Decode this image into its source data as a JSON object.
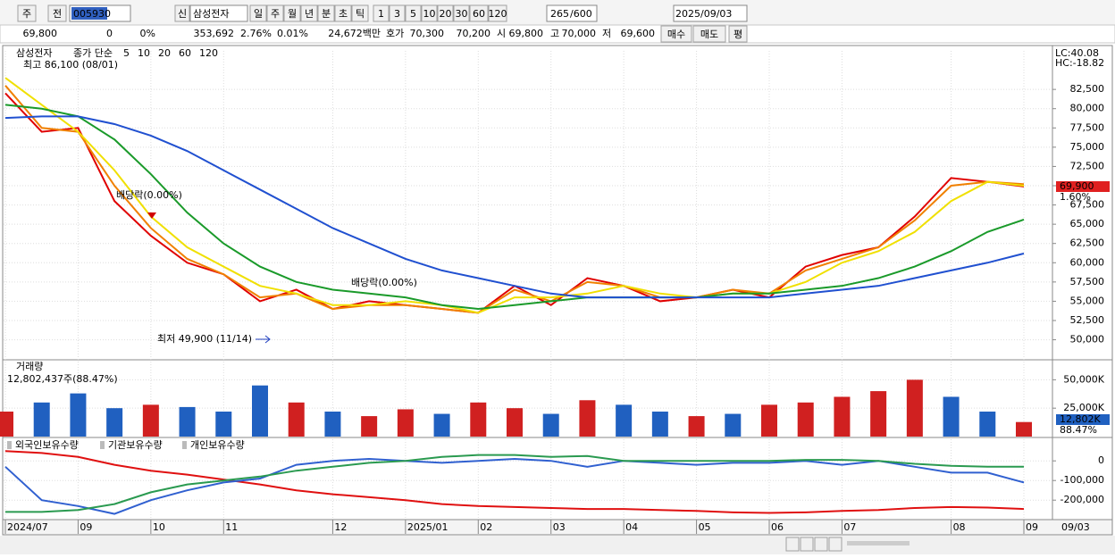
{
  "toolbar": {
    "period": "주",
    "prev": "전",
    "code": "005930",
    "name": "삼성전자",
    "new": "신",
    "intervals": [
      "일",
      "주",
      "월",
      "년",
      "분",
      "초",
      "틱"
    ],
    "counts": [
      "1",
      "3",
      "5",
      "10",
      "20",
      "30",
      "60",
      "120"
    ],
    "range": "265",
    "range_max": "/600",
    "date": "2025/09/03"
  },
  "quote": {
    "price": "69,800",
    "change": "0",
    "change_pct": "0%",
    "volume": "353,692",
    "turnover": "2.76%",
    "ratio": "0.01%",
    "amount": "24,672백만",
    "ask_label": "호가",
    "ask": "70,300",
    "bid": "70,200",
    "open_label": "시",
    "open": "69,800",
    "high_label": "고",
    "high": "70,000",
    "low_label": "저",
    "low": "69,600",
    "buy": "매수",
    "sell": "매도",
    "avg": "평"
  },
  "chart_data": [
    {
      "type": "line",
      "title": "삼성전자",
      "legend_title": "종가 단순",
      "lc": "LC:40.08",
      "hc": "HC:-18.82",
      "last_price": "69,900",
      "last_change": "1.60%",
      "x_end_label": "09/03",
      "annotations": [
        "최고 86,100 (08/01)",
        "배당락(0.00%)",
        "배당락(0.00%)",
        "최저 49,900 (11/14)"
      ],
      "categories": [
        "2024/07",
        null,
        "09",
        null,
        "10",
        null,
        "11",
        null,
        null,
        "12",
        null,
        "2025/01",
        null,
        "02",
        null,
        "03",
        null,
        "04",
        null,
        "05",
        null,
        "06",
        null,
        "07",
        null,
        null,
        "08",
        null,
        "09"
      ],
      "series": [
        {
          "name": "5",
          "color": "#e00000",
          "values": [
            82000,
            77000,
            77500,
            68000,
            63500,
            60000,
            58500,
            55000,
            56500,
            54000,
            55000,
            54500,
            54000,
            53500,
            57000,
            54500,
            58000,
            57000,
            55000,
            55500,
            56500,
            55500,
            59500,
            61000,
            62000,
            66000,
            71000,
            70500,
            69900
          ]
        },
        {
          "name": "10",
          "color": "#f08000",
          "values": [
            83000,
            77500,
            77000,
            70000,
            64500,
            60500,
            58500,
            55500,
            56000,
            54000,
            54500,
            54500,
            54000,
            53500,
            56500,
            55000,
            57500,
            57000,
            55500,
            55500,
            56500,
            56000,
            59000,
            60500,
            62000,
            65500,
            70000,
            70500,
            70200
          ]
        },
        {
          "name": "20",
          "color": "#f0e000",
          "values": [
            84000,
            80500,
            77000,
            72000,
            66000,
            62000,
            59500,
            57000,
            56000,
            54500,
            54500,
            55000,
            54500,
            53500,
            55500,
            55500,
            56000,
            57000,
            56000,
            55500,
            56000,
            56000,
            57500,
            60000,
            61500,
            64000,
            68000,
            70500,
            70000
          ]
        },
        {
          "name": "60",
          "color": "#1a9a2a",
          "values": [
            80500,
            80000,
            79000,
            76000,
            71500,
            66500,
            62500,
            59500,
            57500,
            56500,
            56000,
            55500,
            54500,
            54000,
            54500,
            55000,
            55500,
            55500,
            55500,
            55500,
            56000,
            56000,
            56500,
            57000,
            58000,
            59500,
            61500,
            64000,
            65600
          ]
        },
        {
          "name": "120",
          "color": "#2050d0",
          "values": [
            78800,
            79000,
            79000,
            78000,
            76500,
            74500,
            72000,
            69500,
            67000,
            64500,
            62500,
            60500,
            59000,
            58000,
            57000,
            56000,
            55500,
            55500,
            55500,
            55500,
            55500,
            55500,
            56000,
            56500,
            57000,
            58000,
            59000,
            60000,
            61200
          ]
        }
      ],
      "ylim": [
        47400,
        87500
      ],
      "yticks": [
        {
          "value": 50000,
          "label": "50,000"
        },
        {
          "value": 52500,
          "label": "52,500"
        },
        {
          "value": 55000,
          "label": "55,000"
        },
        {
          "value": 57500,
          "label": "57,500"
        },
        {
          "value": 60000,
          "label": "60,000"
        },
        {
          "value": 62500,
          "label": "62,500"
        },
        {
          "value": 65000,
          "label": "65,000"
        },
        {
          "value": 67500,
          "label": "67,500"
        },
        {
          "value": 70000,
          "label": "70,000"
        },
        {
          "value": 72500,
          "label": "72,500"
        },
        {
          "value": 75000,
          "label": "75,000"
        },
        {
          "value": 77500,
          "label": "77,500"
        },
        {
          "value": 80000,
          "label": "80,000"
        },
        {
          "value": 82500,
          "label": "82,500"
        }
      ],
      "grid": true
    },
    {
      "type": "bar",
      "title": "거래량",
      "subtitle": "12,802,437주(88.47%)",
      "last_label": "12,802K",
      "last_pct": "88.47%",
      "values": [
        22000,
        30000,
        38000,
        25000,
        28000,
        26000,
        22000,
        45000,
        30000,
        22000,
        18000,
        24000,
        20000,
        30000,
        25000,
        20000,
        32000,
        28000,
        22000,
        18000,
        20000,
        28000,
        30000,
        35000,
        40000,
        50000,
        35000,
        22000,
        12802
      ],
      "colors": [
        "#d02020",
        "#2060c0",
        "#2060c0",
        "#2060c0",
        "#d02020",
        "#2060c0",
        "#2060c0",
        "#2060c0",
        "#d02020",
        "#2060c0",
        "#d02020",
        "#d02020",
        "#2060c0",
        "#d02020",
        "#d02020",
        "#2060c0",
        "#d02020",
        "#2060c0",
        "#2060c0",
        "#d02020",
        "#2060c0",
        "#d02020",
        "#d02020",
        "#d02020",
        "#d02020",
        "#d02020",
        "#2060c0",
        "#2060c0",
        "#d02020"
      ],
      "ylim": [
        0,
        66000
      ],
      "yticks": [
        {
          "value": 25000,
          "label": "25,000K"
        },
        {
          "value": 50000,
          "label": "50,000K"
        }
      ],
      "grid": true
    },
    {
      "type": "line",
      "series": [
        {
          "name": "외국인보유수량",
          "color": "#e01010",
          "values": [
            50000,
            40000,
            20000,
            -20000,
            -50000,
            -70000,
            -95000,
            -120000,
            -150000,
            -170000,
            -185000,
            -200000,
            -220000,
            -230000,
            -235000,
            -240000,
            -245000,
            -245000,
            -250000,
            -255000,
            -262000,
            -265000,
            -262000,
            -255000,
            -250000,
            -240000,
            -235000,
            -238000,
            -245000
          ]
        },
        {
          "name": "기관보유수량",
          "color": "#3060d0",
          "values": [
            -30000,
            -200000,
            -230000,
            -270000,
            -200000,
            -150000,
            -110000,
            -90000,
            -20000,
            0,
            10000,
            0,
            -10000,
            0,
            10000,
            0,
            -30000,
            0,
            -10000,
            -20000,
            -10000,
            -10000,
            0,
            -20000,
            0,
            -30000,
            -60000,
            -60000,
            -110000
          ]
        },
        {
          "name": "개인보유수량",
          "color": "#2a9a50",
          "values": [
            -260000,
            -260000,
            -250000,
            -220000,
            -160000,
            -120000,
            -100000,
            -80000,
            -50000,
            -30000,
            -10000,
            0,
            20000,
            30000,
            30000,
            20000,
            25000,
            0,
            0,
            0,
            0,
            0,
            5000,
            5000,
            0,
            -15000,
            -25000,
            -30000,
            -30000
          ]
        }
      ],
      "ylim": [
        -290000,
        110000
      ],
      "yticks": [
        {
          "value": -200000,
          "label": "-200,000"
        },
        {
          "value": -100000,
          "label": "-100,000"
        },
        0
      ],
      "grid": true
    }
  ]
}
